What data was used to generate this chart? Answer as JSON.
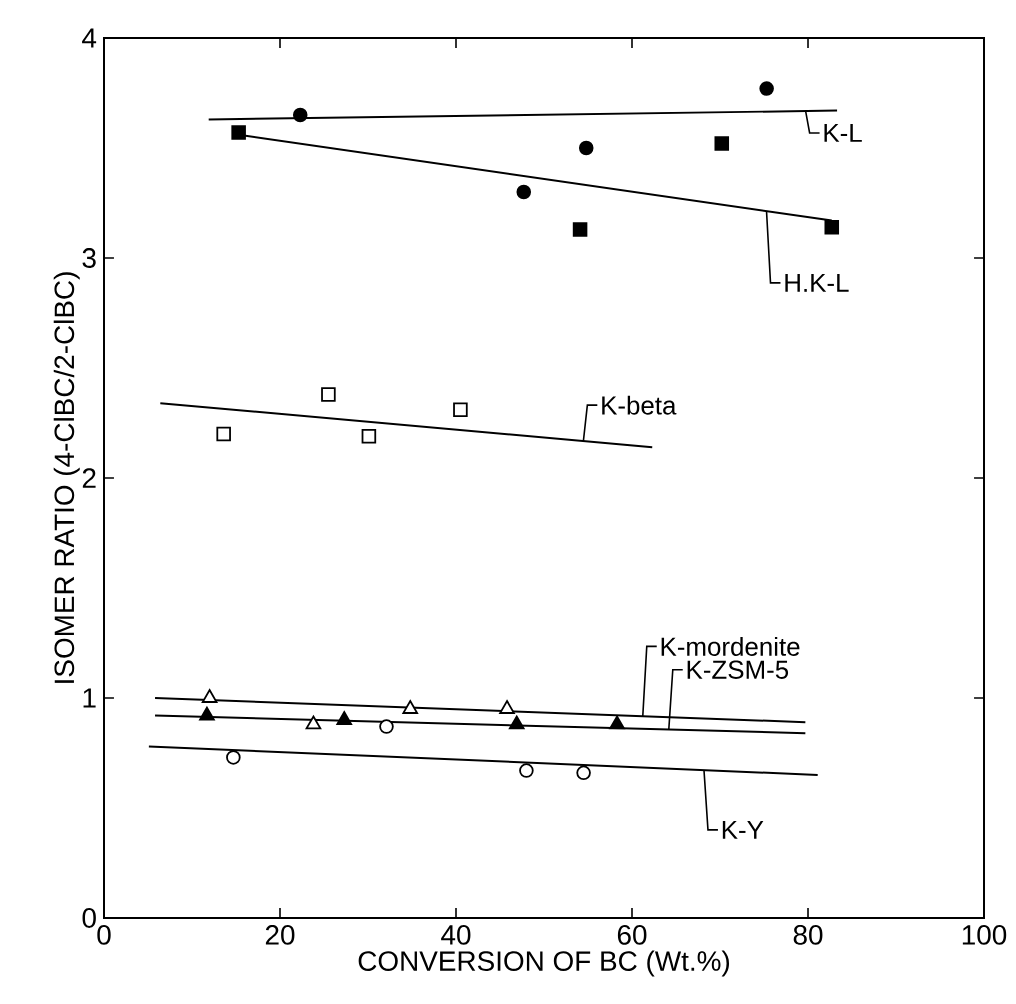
{
  "chart_data": {
    "type": "scatter",
    "xlabel": "CONVERSION OF BC (Wt.%)",
    "ylabel": "ISOMER RATIO (4-ClBC/2-ClBC)",
    "xlim": [
      0,
      100
    ],
    "ylim": [
      0,
      4
    ],
    "xticks": [
      0,
      20,
      40,
      60,
      80,
      100
    ],
    "yticks": [
      0,
      1,
      2,
      3,
      4
    ],
    "grid": false,
    "legend": "right",
    "series": [
      {
        "marker": "circle",
        "color": "#000000",
        "x": [
          22.3,
          47.7,
          54.8,
          75.3
        ],
        "values": [
          3.65,
          3.3,
          3.5,
          3.77
        ]
      },
      {
        "type": "line",
        "name": "K-L",
        "color": "#000000",
        "marker": "none",
        "x": [
          11.9,
          83.3
        ],
        "values": [
          3.63,
          3.67
        ]
      },
      {
        "marker": "square",
        "color": "#000000",
        "x": [
          15.3,
          54.1,
          70.2,
          82.7
        ],
        "values": [
          3.57,
          3.13,
          3.52,
          3.14
        ]
      },
      {
        "type": "line",
        "name": "H.K-L",
        "color": "#000000",
        "marker": "none",
        "x": [
          15.3,
          82.7
        ],
        "values": [
          3.56,
          3.17
        ]
      },
      {
        "marker": "square",
        "color": "#000000",
        "x": [
          13.6,
          25.5,
          30.1,
          40.5
        ],
        "values": [
          2.2,
          2.38,
          2.19,
          2.31
        ]
      },
      {
        "type": "line",
        "name": "K-beta",
        "color": "#000000",
        "marker": "none",
        "x": [
          6.4,
          62.3
        ],
        "values": [
          2.34,
          2.14
        ]
      },
      {
        "marker": "triangle",
        "color": "#000000",
        "x": [
          12.0,
          23.8,
          34.8,
          45.8
        ],
        "values": [
          1.0,
          0.88,
          0.95,
          0.95
        ]
      },
      {
        "type": "line",
        "name": "K-mordenite",
        "color": "#000000",
        "marker": "none",
        "x": [
          5.8,
          79.7
        ],
        "values": [
          1.0,
          0.89
        ]
      },
      {
        "marker": "triangle",
        "color": "#000000",
        "x": [
          11.7,
          27.3,
          46.9,
          58.3
        ],
        "values": [
          0.92,
          0.9,
          0.88,
          0.88
        ]
      },
      {
        "type": "line",
        "name": "K-ZSM-5",
        "color": "#000000",
        "marker": "none",
        "x": [
          5.8,
          79.7
        ],
        "values": [
          0.92,
          0.84
        ]
      },
      {
        "marker": "circle",
        "color": "#000000",
        "x": [
          14.7,
          32.1,
          48.0,
          54.5
        ],
        "values": [
          0.73,
          0.87,
          0.67,
          0.66
        ]
      },
      {
        "type": "line",
        "name": "K-Y",
        "color": "#000000",
        "marker": "none",
        "x": [
          5.1,
          81.1
        ],
        "values": [
          0.78,
          0.65
        ]
      }
    ]
  }
}
